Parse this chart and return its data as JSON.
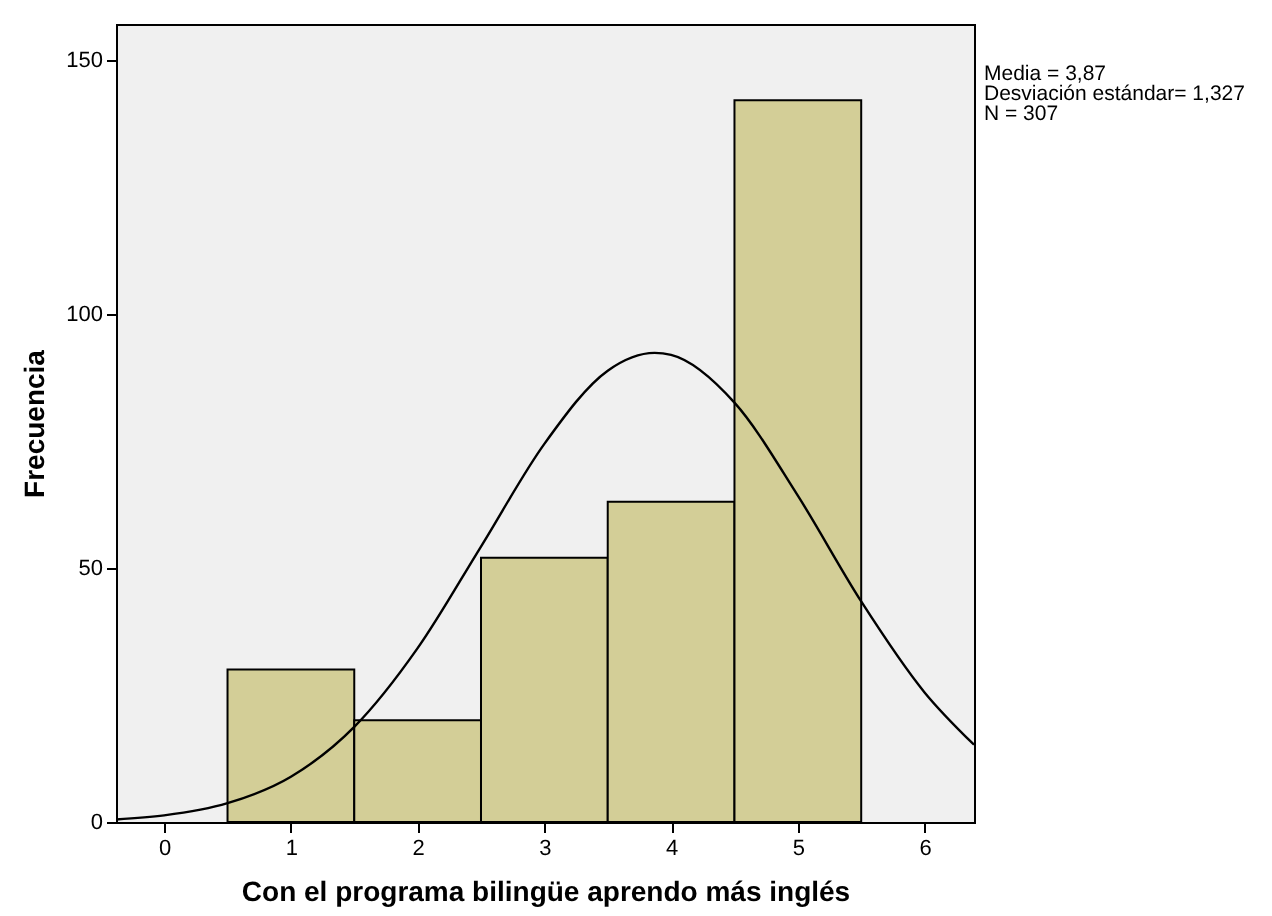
{
  "chart_data": {
    "type": "histogram",
    "xlabel": "Con el programa bilingüe aprendo más inglés",
    "ylabel": "Frecuencia",
    "bins": [
      0.5,
      1.5,
      2.5,
      3.5,
      4.5,
      5.5
    ],
    "values": [
      30,
      20,
      52,
      63,
      142
    ],
    "color": "#d3ce97",
    "series": [
      {
        "type": "line",
        "color": "#000000",
        "x": [
          -0.38,
          0,
          0.5,
          1,
          1.5,
          2,
          2.5,
          3,
          3.5,
          3.87,
          4,
          4.5,
          5,
          5.5,
          6,
          6.39
        ],
        "values": [
          0.5,
          1.3,
          3.7,
          8.9,
          18.7,
          34.2,
          54.2,
          74.4,
          88.8,
          92.3,
          91.9,
          82.5,
          64.2,
          43.4,
          25.5,
          15.2
        ]
      }
    ],
    "xlim": [
      -0.38,
      6.39
    ],
    "xticks": [
      0,
      1,
      2,
      3,
      4,
      5,
      6
    ],
    "ylim": [
      0,
      157
    ],
    "yticks": [
      0,
      50,
      100,
      150
    ],
    "annotations": [
      "Media = 3,87",
      "Desviación estándar= 1,327",
      "N = 307"
    ],
    "grid": false
  }
}
